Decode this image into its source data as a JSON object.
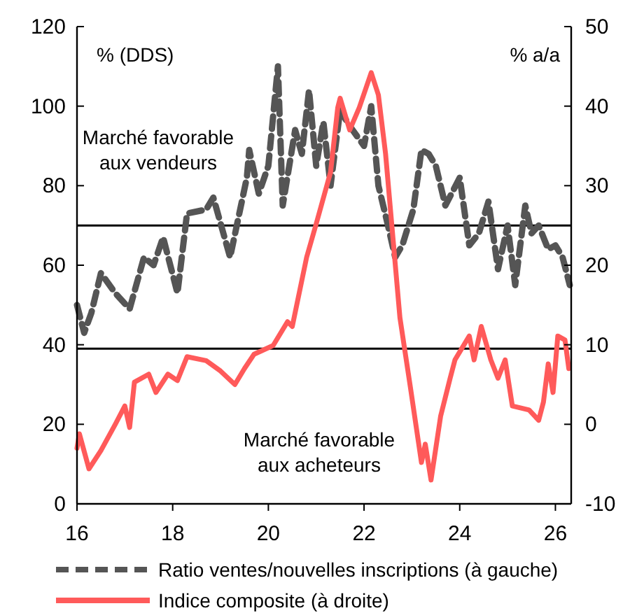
{
  "chart_data": {
    "type": "line",
    "xlim": [
      16,
      26.33
    ],
    "xticks": [
      16,
      18,
      20,
      22,
      24,
      26
    ],
    "ylim": [
      0,
      120
    ],
    "yticks": [
      0,
      20,
      40,
      60,
      80,
      100,
      120
    ],
    "y2lim": [
      -10,
      50
    ],
    "y2ticks": [
      -10,
      0,
      10,
      20,
      30,
      40,
      50
    ],
    "legend": "bottom",
    "grid": false,
    "annotations": [
      "% (DDS)",
      "% a/a",
      "Marché favorable\naux vendeurs",
      "Marché favorable\naux acheteurs"
    ],
    "ref_lines": [
      {
        "axis": "y",
        "value": 70,
        "color": "#000000"
      },
      {
        "axis": "y",
        "value": 39,
        "color": "#000000"
      }
    ],
    "series": [
      {
        "name": "Ratio ventes/nouvelles inscriptions (à gauche)",
        "color": "#555555",
        "line_style": "dashed",
        "x": [
          16,
          16.15,
          16.3,
          16.5,
          16.8,
          17.1,
          17.4,
          17.6,
          17.8,
          18.1,
          18.3,
          18.7,
          18.85,
          19.2,
          19.55,
          19.6,
          19.8,
          20,
          20.2,
          20.3,
          20.56,
          20.7,
          20.85,
          21,
          21.15,
          21.3,
          21.5,
          21.7,
          22,
          22.15,
          22.3,
          22.5,
          22.65,
          22.8,
          23.03,
          23.2,
          23.35,
          23.5,
          23.7,
          24,
          24.2,
          24.4,
          24.6,
          24.8,
          25,
          25.16,
          25.37,
          25.5,
          25.65,
          25.85,
          26,
          26.15,
          26.3
        ],
        "values": [
          50,
          43,
          48,
          58,
          53,
          49,
          62,
          60,
          67,
          53,
          73,
          74,
          77,
          62,
          82,
          89,
          78,
          85,
          110,
          75,
          94,
          88,
          104,
          85,
          96,
          80,
          99,
          95,
          90,
          100,
          80,
          70,
          62,
          65,
          74,
          89,
          88,
          85,
          75,
          82,
          65,
          68,
          76,
          59,
          70,
          55,
          75,
          68,
          70,
          64,
          65,
          62,
          55
        ]
      },
      {
        "name": "Indice composite (à droite)",
        "color": "#ff5a5a",
        "line_style": "solid",
        "axis": "y2",
        "x": [
          16,
          16.05,
          16.25,
          16.5,
          16.8,
          17,
          17.1,
          17.2,
          17.5,
          17.65,
          17.9,
          18.1,
          18.3,
          18.7,
          19,
          19.3,
          19.5,
          19.7,
          20.1,
          20.4,
          20.5,
          20.8,
          21,
          21.3,
          21.45,
          21.5,
          21.7,
          21.9,
          22.15,
          22.3,
          22.45,
          22.75,
          22.97,
          23.2,
          23.28,
          23.4,
          23.6,
          23.8,
          23.9,
          24.2,
          24.3,
          24.45,
          24.65,
          24.8,
          24.95,
          25.1,
          25.45,
          25.65,
          25.75,
          25.85,
          25.95,
          26.05,
          26.2,
          26.28
        ],
        "values": [
          -3,
          -1.2,
          -5.6,
          -3.3,
          0,
          2.3,
          -0.4,
          5.3,
          6.3,
          4,
          6.3,
          5.5,
          8.5,
          8,
          6.7,
          5,
          7,
          8.8,
          9.9,
          12.9,
          12.3,
          21,
          25.2,
          31.7,
          39.8,
          41,
          37,
          39.8,
          44.2,
          41.4,
          34,
          13.4,
          4.6,
          -4.8,
          -2.5,
          -7,
          1,
          5.8,
          8.1,
          11.1,
          8.1,
          12.3,
          8.1,
          5.8,
          8.1,
          2.3,
          1.8,
          0.5,
          2.8,
          7.6,
          4,
          11.1,
          10.6,
          7
        ]
      }
    ]
  }
}
